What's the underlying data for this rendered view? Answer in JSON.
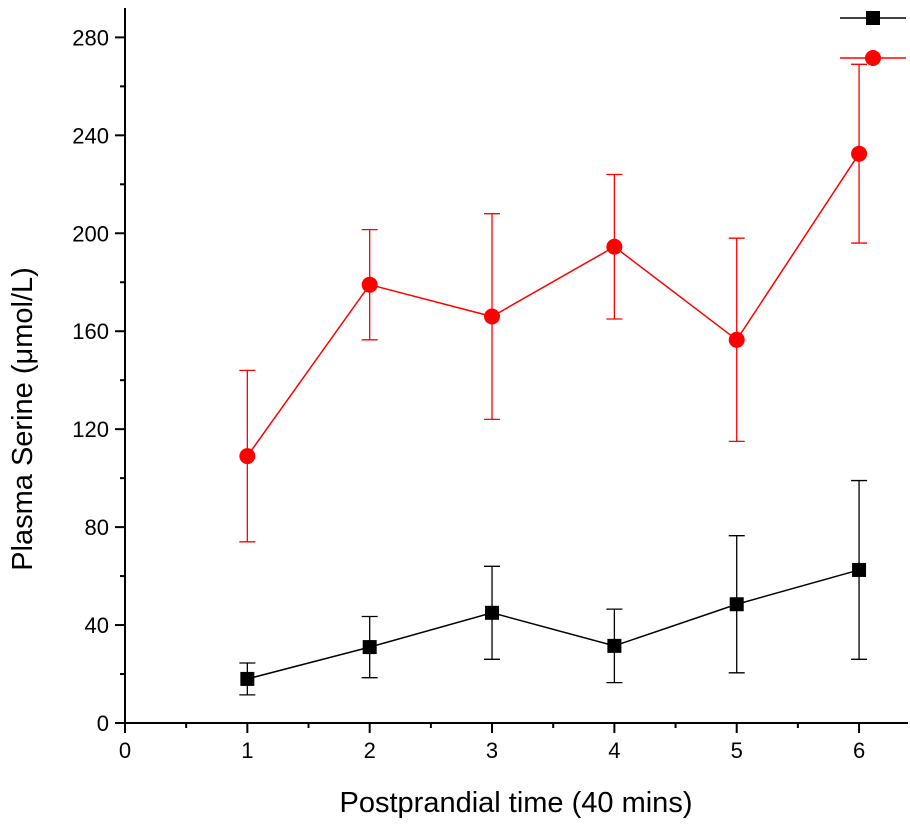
{
  "chart_data": {
    "type": "line",
    "title": "",
    "xlabel": "Postprandial time (40 mins)",
    "ylabel": "Plasma Serine (μmol/L)",
    "xlim": [
      0,
      6.4
    ],
    "ylim": [
      0,
      292
    ],
    "xticks": [
      0,
      1,
      2,
      3,
      4,
      5,
      6
    ],
    "yticks": [
      0,
      40,
      80,
      120,
      160,
      200,
      240,
      280
    ],
    "grid": false,
    "legend": "top-right, marker only (no labels printed)",
    "series": [
      {
        "color": "#000000",
        "marker": "square",
        "x": [
          1,
          2,
          3,
          4,
          5,
          6
        ],
        "values": [
          18,
          31,
          45,
          31.5,
          48.5,
          62.5
        ],
        "error": [
          6.5,
          12.5,
          19,
          15,
          28,
          36.5
        ]
      },
      {
        "color": "#ff0000",
        "marker": "circle",
        "x": [
          1,
          2,
          3,
          4,
          5,
          6
        ],
        "values": [
          109,
          179,
          166,
          194.5,
          156.5,
          232.5
        ],
        "error": [
          35,
          22.5,
          42,
          29.5,
          41.5,
          36.5
        ]
      }
    ]
  }
}
